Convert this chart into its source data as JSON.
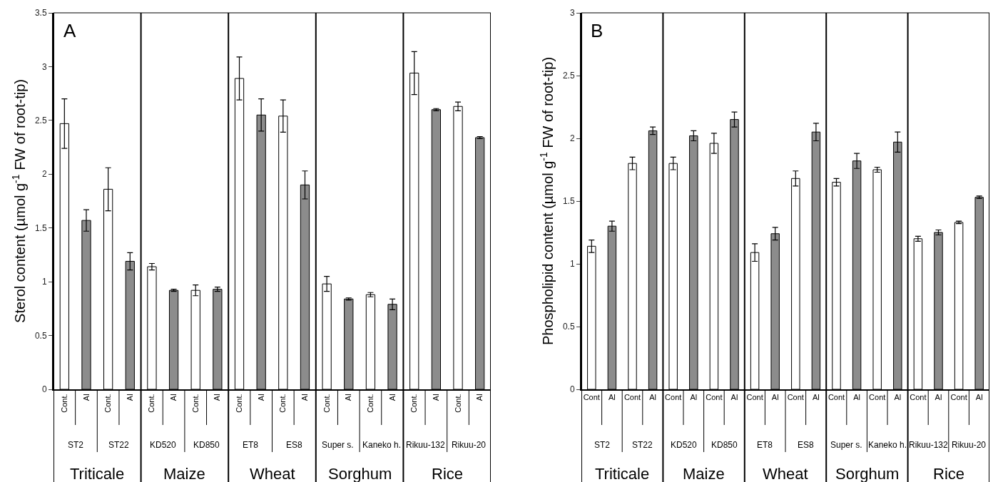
{
  "chart_data": [
    {
      "type": "bar",
      "ylabel": "Sterol content (µmol g$^{-1}$ FW of root-tip)",
      "categories": [
        "Cont.",
        "Al",
        "Cont.",
        "Al",
        "Cont.",
        "Al",
        "Cont.",
        "Al",
        "Cont.",
        "Al",
        "Cont.",
        "Al",
        "Cont.",
        "Al",
        "Cont.",
        "Al",
        "Cont.",
        "Al",
        "Cont.",
        "Al"
      ],
      "values": [
        2.47,
        1.57,
        1.86,
        1.19,
        1.14,
        0.92,
        0.92,
        0.93,
        2.89,
        2.55,
        2.54,
        1.9,
        0.98,
        0.84,
        0.88,
        0.79,
        2.94,
        2.6,
        2.63,
        2.34
      ],
      "errors": [
        0.23,
        0.1,
        0.2,
        0.08,
        0.03,
        0.01,
        0.05,
        0.02,
        0.2,
        0.15,
        0.15,
        0.13,
        0.07,
        0.01,
        0.02,
        0.05,
        0.2,
        0.01,
        0.04,
        0.01
      ],
      "colors": [
        "#ffffff",
        "#8c8c8c",
        "#ffffff",
        "#8c8c8c",
        "#ffffff",
        "#8c8c8c",
        "#ffffff",
        "#8c8c8c",
        "#ffffff",
        "#8c8c8c",
        "#ffffff",
        "#8c8c8c",
        "#ffffff",
        "#8c8c8c",
        "#ffffff",
        "#8c8c8c",
        "#ffffff",
        "#8c8c8c",
        "#ffffff",
        "#8c8c8c"
      ],
      "ylim": [
        0,
        3.5
      ],
      "yticks": [
        0,
        0.5,
        1,
        1.5,
        2,
        2.5,
        3,
        3.5
      ],
      "annotations": [
        "A",
        "ST2",
        "ST22",
        "KD520",
        "KD850",
        "ET8",
        "ES8",
        "Super s.",
        "Kaneko h.",
        "Rikuu-132",
        "Rikuu-20",
        "Triticale",
        "Maize",
        "Wheat",
        "Sorghum",
        "Rice"
      ]
    },
    {
      "type": "bar",
      "ylabel": "Phospholipid content (µmol g$^{-1}$ FW of root-tip)",
      "categories": [
        "Cont",
        "Al",
        "Cont",
        "Al",
        "Cont",
        "Al",
        "Cont",
        "Al",
        "Cont",
        "Al",
        "Cont",
        "Al",
        "Cont",
        "Al",
        "Cont",
        "Al",
        "Cont",
        "Al",
        "Cont",
        "Al"
      ],
      "values": [
        1.14,
        1.3,
        1.8,
        2.06,
        1.8,
        2.02,
        1.96,
        2.15,
        1.09,
        1.24,
        1.68,
        2.05,
        1.65,
        1.82,
        1.75,
        1.97,
        1.2,
        1.25,
        1.33,
        1.53
      ],
      "errors": [
        0.05,
        0.04,
        0.05,
        0.03,
        0.05,
        0.04,
        0.08,
        0.06,
        0.07,
        0.05,
        0.06,
        0.07,
        0.03,
        0.06,
        0.02,
        0.08,
        0.02,
        0.02,
        0.01,
        0.01
      ],
      "colors": [
        "#ffffff",
        "#8c8c8c",
        "#ffffff",
        "#8c8c8c",
        "#ffffff",
        "#8c8c8c",
        "#ffffff",
        "#8c8c8c",
        "#ffffff",
        "#8c8c8c",
        "#ffffff",
        "#8c8c8c",
        "#ffffff",
        "#8c8c8c",
        "#ffffff",
        "#8c8c8c",
        "#ffffff",
        "#8c8c8c",
        "#ffffff",
        "#8c8c8c"
      ],
      "ylim": [
        0,
        3
      ],
      "yticks": [
        0,
        0.5,
        1,
        1.5,
        2,
        2.5,
        3
      ],
      "annotations": [
        "B",
        "ST2",
        "ST22",
        "KD520",
        "KD850",
        "ET8",
        "ES8",
        "Super s.",
        "Kaneko h.",
        "Rikuu-132",
        "Rikuu-20",
        "Triticale",
        "Maize",
        "Wheat",
        "Sorghum",
        "Rice"
      ]
    }
  ]
}
